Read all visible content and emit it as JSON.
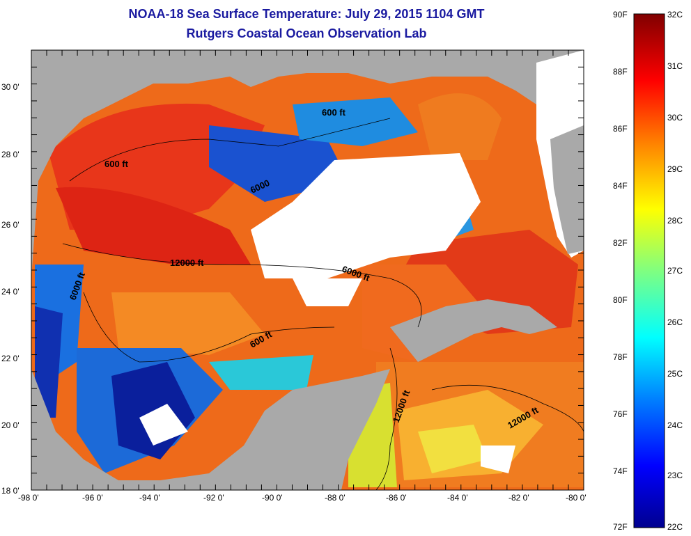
{
  "title": "NOAA-18 Sea Surface Temperature:  July 29, 2015 1104 GMT",
  "subtitle": "Rutgers Coastal Ocean Observation Lab",
  "x_ticks": [
    "-98 0'",
    "-96 0'",
    "-94 0'",
    "-92 0'",
    "-90 0'",
    "-88 0'",
    "-86 0'",
    "-84 0'",
    "-82 0'",
    "-80 0'"
  ],
  "y_ticks": [
    "30 0'",
    "28 0'",
    "26 0'",
    "24 0'",
    "22 0'",
    "20 0'",
    "18 0'"
  ],
  "colorbar": {
    "fahrenheit": [
      "90F",
      "88F",
      "86F",
      "84F",
      "82F",
      "80F",
      "78F",
      "76F",
      "74F",
      "72F"
    ],
    "celsius": [
      "32C",
      "31C",
      "30C",
      "29C",
      "28C",
      "27C",
      "26C",
      "25C",
      "24C",
      "23C",
      "22C"
    ]
  },
  "contour_labels": [
    "600 ft",
    "600 ft",
    "6000",
    "12000 ft",
    "6000 ft",
    "6000 ft",
    "600 ft",
    "12000 ft",
    "12000 ft"
  ],
  "colors": {
    "land": "#a9a9a9",
    "cloud": "#ffffff",
    "title": "#1a1aa0",
    "warm": "#e8361a",
    "cool": "#1040c8"
  }
}
